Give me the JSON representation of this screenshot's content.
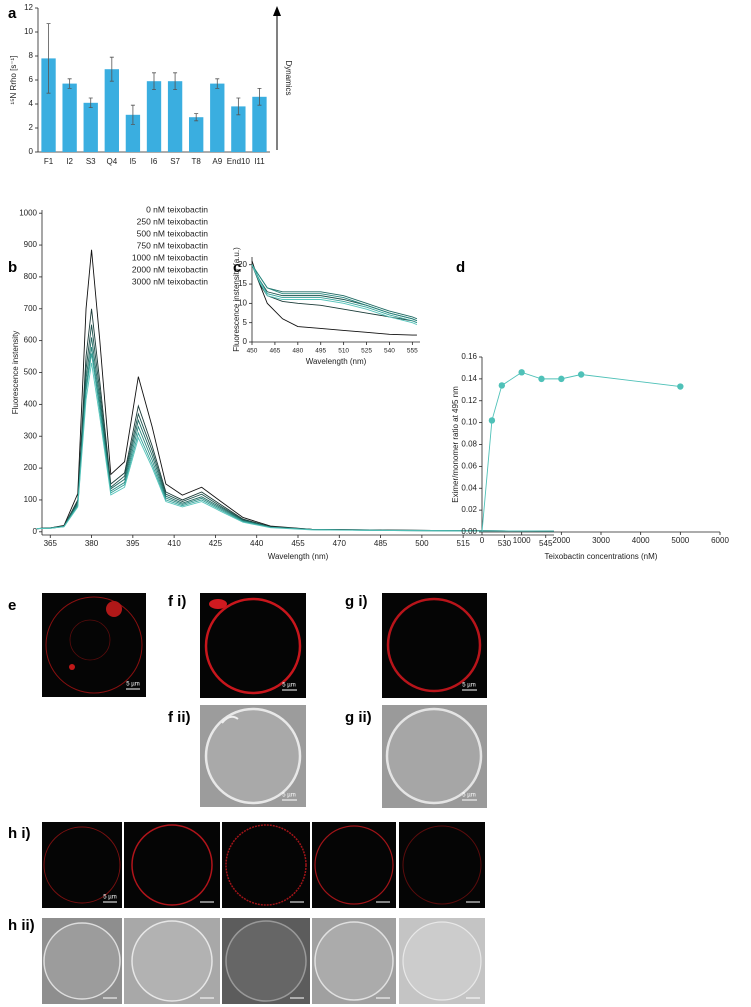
{
  "chart_data": [
    {
      "type": "bar",
      "label": "a",
      "ylabel": "¹⁵N Rrho [s⁻¹]",
      "annotation": "Dynamics",
      "categories": [
        "F1",
        "I2",
        "S3",
        "Q4",
        "I5",
        "I6",
        "S7",
        "T8",
        "A9",
        "End10",
        "I11"
      ],
      "values": [
        7.8,
        5.7,
        4.1,
        6.9,
        3.1,
        5.9,
        5.9,
        2.9,
        5.7,
        3.8,
        4.6
      ],
      "errors": [
        2.9,
        0.4,
        0.4,
        1.0,
        0.8,
        0.7,
        0.7,
        0.3,
        0.4,
        0.7,
        0.7
      ],
      "color": "#3aaee0",
      "ylim": [
        0,
        12
      ],
      "yticks": [
        0,
        2,
        4,
        6,
        8,
        10,
        12
      ]
    },
    {
      "type": "line",
      "label": "b",
      "xlabel": "Wavelength (nm)",
      "ylabel": "Fluorescence instensity",
      "x": [
        360,
        365,
        370,
        375,
        378,
        380,
        383,
        387,
        392,
        397,
        402,
        407,
        413,
        420,
        427,
        435,
        445,
        460,
        490,
        548
      ],
      "series": [
        {
          "name": "0 nM teixobactin",
          "color": "#111111",
          "values": [
            10,
            12,
            20,
            120,
            700,
            885,
            600,
            180,
            220,
            487,
            330,
            150,
            115,
            140,
            95,
            45,
            18,
            8,
            5,
            2
          ]
        },
        {
          "name": "250 nM teixobactin",
          "color": "#1b3b38",
          "values": [
            10,
            12,
            18,
            100,
            550,
            700,
            470,
            150,
            185,
            395,
            270,
            125,
            100,
            125,
            85,
            40,
            16,
            8,
            5,
            2
          ]
        },
        {
          "name": "500 nM teixobactin",
          "color": "#1c524d",
          "values": [
            10,
            12,
            18,
            95,
            510,
            650,
            440,
            140,
            175,
            370,
            255,
            118,
            95,
            118,
            80,
            38,
            15,
            7,
            5,
            2
          ]
        },
        {
          "name": "750 nM teixobactin",
          "color": "#1f6a63",
          "values": [
            10,
            12,
            17,
            90,
            480,
            610,
            415,
            135,
            165,
            350,
            240,
            112,
            90,
            110,
            76,
            36,
            15,
            7,
            4,
            2
          ]
        },
        {
          "name": "1000 nM teixobactin",
          "color": "#27877f",
          "values": [
            10,
            11,
            17,
            85,
            455,
            580,
            395,
            128,
            155,
            330,
            225,
            106,
            86,
            105,
            72,
            34,
            14,
            7,
            4,
            2
          ]
        },
        {
          "name": "2000 nM teixobactin",
          "color": "#35a39a",
          "values": [
            10,
            11,
            16,
            82,
            440,
            560,
            380,
            122,
            148,
            310,
            212,
            100,
            82,
            100,
            68,
            32,
            14,
            7,
            4,
            2
          ]
        },
        {
          "name": "3000 nM teixobactin",
          "color": "#55c4bb",
          "values": [
            10,
            11,
            16,
            78,
            415,
            530,
            360,
            116,
            140,
            295,
            202,
            95,
            78,
            95,
            64,
            30,
            13,
            6,
            4,
            2
          ]
        }
      ],
      "xlim": [
        362,
        548
      ],
      "xticks": [
        365,
        380,
        395,
        410,
        425,
        440,
        455,
        470,
        485,
        500,
        515,
        530,
        545
      ],
      "ylim": [
        -10,
        1010
      ],
      "yticks": [
        0,
        100,
        200,
        300,
        400,
        500,
        600,
        700,
        800,
        900,
        1000
      ]
    },
    {
      "type": "line",
      "label": "c",
      "xlabel": "Wavelength (nm)",
      "ylabel": "Fluorescence instensity (a.u.)",
      "x": [
        450,
        455,
        460,
        470,
        480,
        495,
        510,
        525,
        540,
        555,
        558
      ],
      "series": [
        {
          "color": "#111111",
          "values": [
            21,
            15,
            10,
            6,
            4,
            3.5,
            3,
            2.5,
            2,
            1.8,
            1.8
          ]
        },
        {
          "color": "#1b3b38",
          "values": [
            20,
            15,
            12,
            10.5,
            10,
            9.5,
            8.5,
            7.5,
            6.5,
            5.5,
            5
          ]
        },
        {
          "color": "#1c524d",
          "values": [
            20,
            16,
            13,
            12,
            12,
            12,
            11,
            9.5,
            7.5,
            6,
            5.5
          ]
        },
        {
          "color": "#1f6a63",
          "values": [
            20,
            17,
            14,
            13,
            13,
            13,
            12,
            10,
            8,
            6.5,
            6
          ]
        },
        {
          "color": "#27877f",
          "values": [
            20,
            17,
            14,
            12.5,
            12.5,
            12.5,
            11.5,
            9.5,
            7.5,
            6,
            5.5
          ]
        },
        {
          "color": "#35a39a",
          "values": [
            20,
            16,
            12.5,
            11.5,
            11.5,
            11.5,
            10.5,
            9,
            7,
            5.5,
            5
          ]
        },
        {
          "color": "#55c4bb",
          "values": [
            20,
            15.5,
            12,
            11,
            11,
            11,
            10,
            8.5,
            6.5,
            5,
            4.5
          ]
        }
      ],
      "xlim": [
        450,
        560
      ],
      "xticks": [
        450,
        465,
        480,
        495,
        510,
        525,
        540,
        555
      ],
      "ylim": [
        0,
        22
      ],
      "yticks": [
        0,
        5,
        10,
        15,
        20
      ]
    },
    {
      "type": "line",
      "label": "d",
      "markers": true,
      "xlabel": "Teixobactin concentrations (nM)",
      "ylabel": "Eximer/monomer ratio at 495 nm",
      "x": [
        0,
        250,
        500,
        1000,
        1500,
        2000,
        2500,
        5000
      ],
      "values": [
        0,
        0.102,
        0.134,
        0.146,
        0.14,
        0.14,
        0.144,
        0.133
      ],
      "color": "#4fc1b8",
      "xlim": [
        0,
        6000
      ],
      "xticks": [
        0,
        1000,
        2000,
        3000,
        4000,
        5000,
        6000
      ],
      "ylim": [
        0,
        0.16
      ],
      "yticks": [
        {
          "value": 0,
          "label": "0.00"
        },
        {
          "value": 0.02,
          "label": "0.02"
        },
        {
          "value": 0.04,
          "label": "0.04"
        },
        {
          "value": 0.06,
          "label": "0.06"
        },
        {
          "value": 0.08,
          "label": "0.08"
        },
        {
          "value": 0.1,
          "label": "0.10"
        },
        {
          "value": 0.12,
          "label": "0.12"
        },
        {
          "value": 0.14,
          "label": "0.14"
        },
        {
          "value": 0.16,
          "label": "0.16"
        }
      ]
    }
  ],
  "image_panels": [
    {
      "label": "e",
      "scale_bar": "5 µm"
    },
    {
      "label": "f i)",
      "scale_bar": "5 µm"
    },
    {
      "label": "f ii)",
      "scale_bar": "5 µm"
    },
    {
      "label": "g i)",
      "scale_bar": "5 µm"
    },
    {
      "label": "g ii)",
      "scale_bar": "5 µm"
    },
    {
      "label": "h i)",
      "scale_bar": "5 µm"
    },
    {
      "label": "h ii)"
    }
  ]
}
